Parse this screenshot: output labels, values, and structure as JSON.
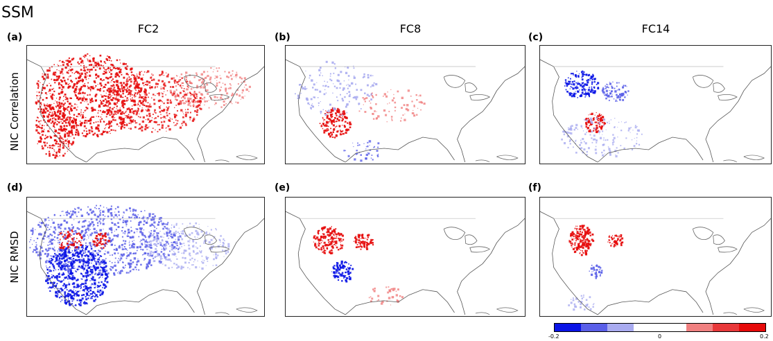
{
  "title": "SSM",
  "columns": [
    {
      "title": "FC2"
    },
    {
      "title": "FC8"
    },
    {
      "title": "FC14"
    }
  ],
  "rows": [
    {
      "label": "NIC Correlation"
    },
    {
      "label": "NIC RMSD"
    }
  ],
  "panels": [
    {
      "label": "(a)",
      "row": 0,
      "col": 0,
      "pattern": "corr-fc2"
    },
    {
      "label": "(b)",
      "row": 0,
      "col": 1,
      "pattern": "corr-fc8"
    },
    {
      "label": "(c)",
      "row": 0,
      "col": 2,
      "pattern": "corr-fc14"
    },
    {
      "label": "(d)",
      "row": 1,
      "col": 0,
      "pattern": "rmsd-fc2"
    },
    {
      "label": "(e)",
      "row": 1,
      "col": 1,
      "pattern": "rmsd-fc8"
    },
    {
      "label": "(f)",
      "row": 1,
      "col": 2,
      "pattern": "rmsd-fc14"
    }
  ],
  "colorbar": {
    "min": -0.2,
    "max": 0.2,
    "colors": [
      "#0a14e6",
      "#5a5fe8",
      "#a9abf0",
      "#ffffff",
      "#ffffff",
      "#f08080",
      "#e8383a",
      "#e60a0a"
    ],
    "ticks": [
      {
        "value": -0.2,
        "label": "-0.2"
      },
      {
        "value": 0,
        "label": "0"
      },
      {
        "value": 0.2,
        "label": "0.2"
      }
    ]
  }
}
